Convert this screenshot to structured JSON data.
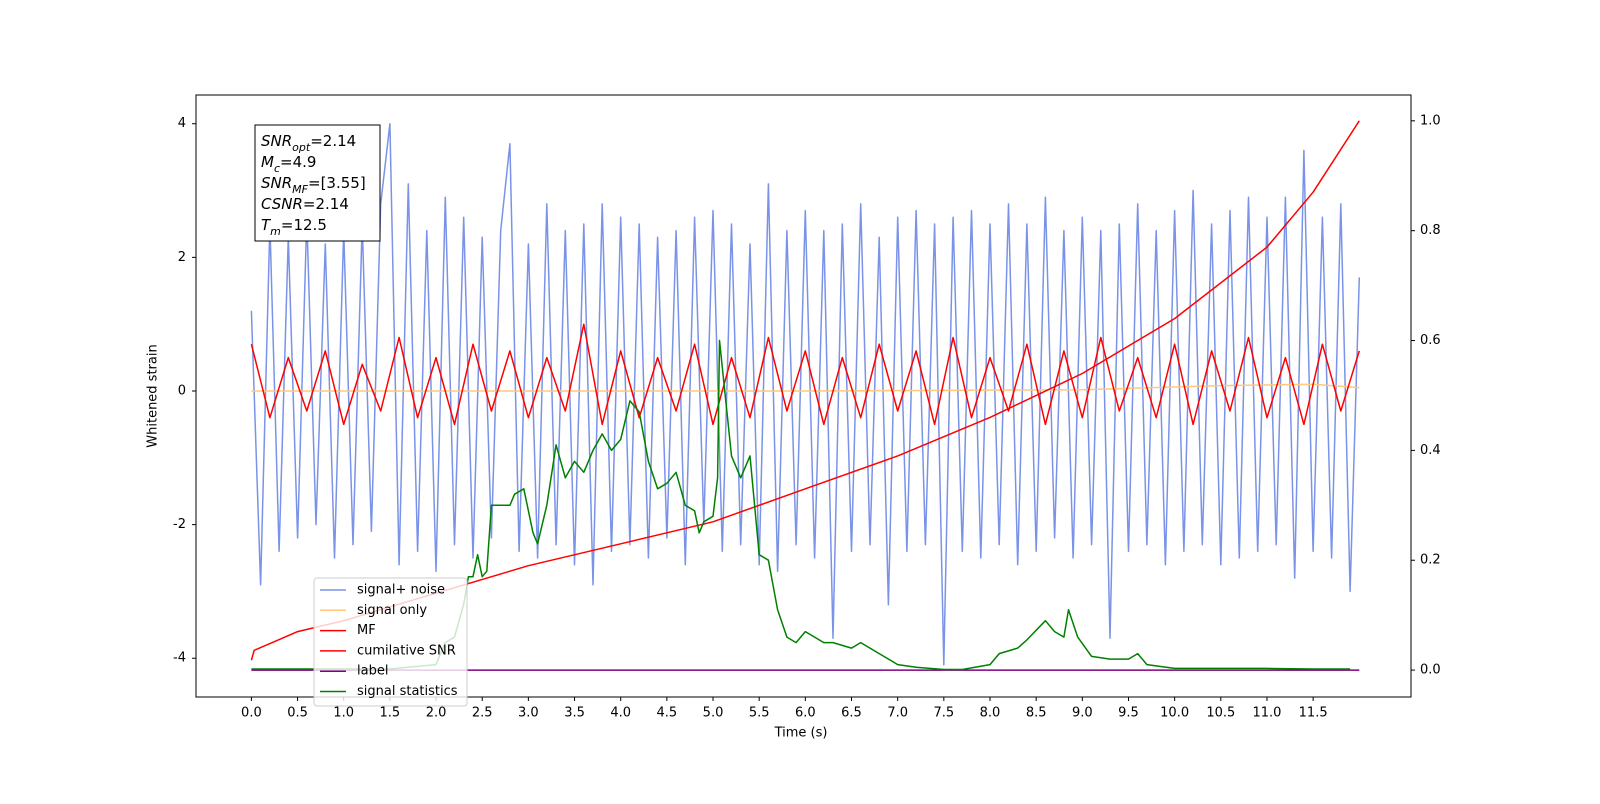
{
  "chart_data": {
    "type": "line",
    "xlabel": "Time (s)",
    "ylabel": "Whitened strain",
    "xlim": [
      -0.6,
      12.56
    ],
    "ylim": [
      -4.58,
      4.43
    ],
    "y2lim": [
      -0.049,
      1.047
    ],
    "xticks": [
      {
        "value": 0,
        "label": "0.0"
      },
      0.5,
      {
        "value": 1,
        "label": "1.0"
      },
      1.5,
      {
        "value": 2,
        "label": "2.0"
      },
      2.5,
      {
        "value": 3,
        "label": "3.0"
      },
      3.5,
      {
        "value": 4,
        "label": "4.0"
      },
      4.5,
      {
        "value": 5,
        "label": "5.0"
      },
      5.5,
      {
        "value": 6,
        "label": "6.0"
      },
      6.5,
      {
        "value": 7,
        "label": "7.0"
      },
      7.5,
      {
        "value": 8,
        "label": "8.0"
      },
      8.5,
      {
        "value": 9,
        "label": "9.0"
      },
      9.5,
      {
        "value": 10,
        "label": "10.0"
      },
      10.5,
      {
        "value": 11,
        "label": "11.0"
      },
      11.5
    ],
    "yticks": [
      -4,
      -2,
      0,
      2,
      4
    ],
    "y2ticks": [
      {
        "value": 0,
        "label": "0.0"
      },
      0.2,
      0.4,
      0.6,
      0.8,
      {
        "value": 1,
        "label": "1.0"
      }
    ],
    "legend": "lower left",
    "annotation": [
      {
        "symbol": "SNR",
        "subscript": "opt",
        "rest": "=2.14"
      },
      {
        "symbol": "M",
        "subscript": "c",
        "rest": "=4.9"
      },
      {
        "symbol": "SNR",
        "subscript": "MF",
        "rest": "=[3.55]"
      },
      {
        "symbol": "CSNR",
        "subscript": "",
        "rest": "=2.14"
      },
      {
        "symbol": "T",
        "subscript": "m",
        "rest": "=12.5"
      }
    ],
    "series": [
      {
        "name": "signal+ noise",
        "color": "#7a93e8",
        "axis": "y",
        "x": [
          0,
          0.1,
          0.2,
          0.3,
          0.4,
          0.5,
          0.6,
          0.7,
          0.8,
          0.9,
          1,
          1.1,
          1.2,
          1.3,
          1.4,
          1.5,
          1.6,
          1.7,
          1.8,
          1.9,
          2,
          2.1,
          2.2,
          2.3,
          2.4,
          2.5,
          2.6,
          2.7,
          2.8,
          2.9,
          3,
          3.1,
          3.2,
          3.3,
          3.4,
          3.5,
          3.6,
          3.7,
          3.8,
          3.9,
          4,
          4.1,
          4.2,
          4.3,
          4.4,
          4.5,
          4.6,
          4.7,
          4.8,
          4.9,
          5,
          5.1,
          5.2,
          5.3,
          5.4,
          5.5,
          5.6,
          5.7,
          5.8,
          5.9,
          6,
          6.1,
          6.2,
          6.3,
          6.4,
          6.5,
          6.6,
          6.7,
          6.8,
          6.9,
          7,
          7.1,
          7.2,
          7.3,
          7.4,
          7.5,
          7.6,
          7.7,
          7.8,
          7.9,
          8,
          8.1,
          8.2,
          8.3,
          8.4,
          8.5,
          8.6,
          8.7,
          8.8,
          8.9,
          9,
          9.1,
          9.2,
          9.3,
          9.4,
          9.5,
          9.6,
          9.7,
          9.8,
          9.9,
          10,
          10.1,
          10.2,
          10.3,
          10.4,
          10.5,
          10.6,
          10.7,
          10.8,
          10.9,
          11,
          11.1,
          11.2,
          11.3,
          11.4,
          11.5,
          11.6,
          11.7,
          11.8,
          11.9,
          12
        ],
        "values": [
          1.2,
          -2.9,
          2.5,
          -2.4,
          2.3,
          -2.2,
          2.6,
          -2.0,
          2.2,
          -2.5,
          2.4,
          -2.3,
          2.5,
          -2.1,
          2.8,
          4.0,
          -2.6,
          3.1,
          -2.4,
          2.4,
          -2.7,
          2.9,
          -2.3,
          2.6,
          -2.5,
          2.3,
          -2.2,
          2.4,
          3.7,
          -2.4,
          2.2,
          -2.5,
          2.8,
          -2.3,
          2.4,
          -2.6,
          2.5,
          -2.9,
          2.8,
          -2.4,
          2.6,
          -2.3,
          2.5,
          -2.5,
          2.3,
          -2.2,
          2.4,
          -2.6,
          2.6,
          -2.0,
          2.7,
          -2.4,
          2.5,
          -2.3,
          2.2,
          -2.6,
          3.1,
          -2.7,
          2.4,
          -2.3,
          2.7,
          -2.5,
          2.4,
          -3.7,
          2.5,
          -2.4,
          2.8,
          -2.3,
          2.3,
          -3.2,
          2.6,
          -2.4,
          2.7,
          -2.3,
          2.5,
          -4.1,
          2.6,
          -2.4,
          2.7,
          -2.5,
          2.5,
          -2.3,
          2.8,
          -2.6,
          2.5,
          -2.4,
          2.9,
          -2.2,
          2.4,
          -2.5,
          2.6,
          -2.3,
          2.4,
          -3.7,
          2.5,
          -2.4,
          2.8,
          -2.3,
          2.4,
          -2.6,
          2.7,
          -2.4,
          3.0,
          -2.3,
          2.5,
          -2.6,
          2.7,
          -2.5,
          2.9,
          -2.4,
          2.6,
          -2.3,
          2.9,
          -2.8,
          3.6,
          -2.4,
          2.6,
          -2.5,
          2.8,
          -3.0,
          1.7
        ]
      },
      {
        "name": "signal only",
        "color": "#ffc87a",
        "axis": "y",
        "x": [
          0,
          3,
          6,
          9,
          10.5,
          11.5,
          12
        ],
        "values": [
          0,
          0,
          0,
          0.02,
          0.08,
          0.1,
          0.05
        ]
      },
      {
        "name": "MF",
        "color": "#ff0000",
        "axis": "y",
        "x": [
          0,
          0.2,
          0.4,
          0.6,
          0.8,
          1,
          1.2,
          1.4,
          1.6,
          1.8,
          2,
          2.2,
          2.4,
          2.6,
          2.8,
          3,
          3.2,
          3.4,
          3.6,
          3.8,
          4,
          4.2,
          4.4,
          4.6,
          4.8,
          5,
          5.2,
          5.4,
          5.6,
          5.8,
          6,
          6.2,
          6.4,
          6.6,
          6.8,
          7,
          7.2,
          7.4,
          7.6,
          7.8,
          8,
          8.2,
          8.4,
          8.6,
          8.8,
          9,
          9.2,
          9.4,
          9.6,
          9.8,
          10,
          10.2,
          10.4,
          10.6,
          10.8,
          11,
          11.2,
          11.4,
          11.6,
          11.8,
          12
        ],
        "values": [
          0.7,
          -0.4,
          0.5,
          -0.3,
          0.6,
          -0.5,
          0.4,
          -0.3,
          0.8,
          -0.4,
          0.5,
          -0.5,
          0.7,
          -0.3,
          0.6,
          -0.4,
          0.5,
          -0.3,
          1.0,
          -0.5,
          0.6,
          -0.4,
          0.5,
          -0.3,
          0.7,
          -0.5,
          0.5,
          -0.4,
          0.8,
          -0.3,
          0.6,
          -0.5,
          0.5,
          -0.4,
          0.7,
          -0.3,
          0.6,
          -0.5,
          0.8,
          -0.4,
          0.5,
          -0.3,
          0.7,
          -0.5,
          0.6,
          -0.4,
          0.8,
          -0.3,
          0.5,
          -0.4,
          0.7,
          -0.5,
          0.6,
          -0.3,
          0.8,
          -0.4,
          0.5,
          -0.5,
          0.7,
          -0.3,
          0.6
        ]
      },
      {
        "name": "cumilative SNR",
        "color": "#ff0000",
        "axis": "y2",
        "x": [
          0,
          0.03,
          0.5,
          1,
          2,
          3,
          4,
          5,
          6,
          7,
          8,
          9,
          10,
          11,
          11.5,
          12
        ],
        "values": [
          0.018,
          0.036,
          0.07,
          0.09,
          0.14,
          0.19,
          0.23,
          0.27,
          0.33,
          0.39,
          0.46,
          0.54,
          0.64,
          0.77,
          0.87,
          1.0
        ]
      },
      {
        "name": "label",
        "color": "#800080",
        "axis": "y2",
        "x": [
          0,
          12
        ],
        "values": [
          0,
          0
        ]
      },
      {
        "name": "signal statistics",
        "color": "#008000",
        "axis": "y2",
        "x": [
          0,
          1.5,
          2.0,
          2.1,
          2.2,
          2.3,
          2.35,
          2.4,
          2.45,
          2.5,
          2.55,
          2.6,
          2.8,
          2.85,
          2.95,
          3.05,
          3.1,
          3.2,
          3.3,
          3.4,
          3.5,
          3.6,
          3.7,
          3.8,
          3.9,
          4.0,
          4.1,
          4.2,
          4.3,
          4.4,
          4.5,
          4.6,
          4.7,
          4.8,
          4.85,
          4.9,
          5.0,
          5.05,
          5.07,
          5.2,
          5.3,
          5.4,
          5.5,
          5.6,
          5.7,
          5.8,
          5.9,
          6.0,
          6.1,
          6.2,
          6.3,
          6.5,
          6.6,
          6.7,
          6.8,
          7.0,
          7.2,
          7.5,
          7.7,
          8.0,
          8.1,
          8.3,
          8.4,
          8.6,
          8.7,
          8.8,
          8.85,
          8.95,
          9.1,
          9.3,
          9.5,
          9.6,
          9.7,
          10.0,
          11.0,
          11.5,
          11.9
        ],
        "values": [
          0.002,
          0.002,
          0.01,
          0.05,
          0.06,
          0.12,
          0.17,
          0.17,
          0.21,
          0.17,
          0.18,
          0.3,
          0.3,
          0.32,
          0.33,
          0.25,
          0.23,
          0.3,
          0.41,
          0.35,
          0.38,
          0.36,
          0.4,
          0.43,
          0.4,
          0.42,
          0.49,
          0.47,
          0.38,
          0.33,
          0.34,
          0.36,
          0.3,
          0.29,
          0.25,
          0.27,
          0.28,
          0.35,
          0.6,
          0.39,
          0.35,
          0.39,
          0.21,
          0.2,
          0.11,
          0.06,
          0.05,
          0.07,
          0.06,
          0.05,
          0.05,
          0.04,
          0.05,
          0.04,
          0.03,
          0.01,
          0.005,
          0.001,
          0.001,
          0.01,
          0.03,
          0.04,
          0.055,
          0.09,
          0.07,
          0.06,
          0.11,
          0.06,
          0.025,
          0.02,
          0.02,
          0.03,
          0.01,
          0.003,
          0.003,
          0.002,
          0.002
        ]
      }
    ]
  }
}
